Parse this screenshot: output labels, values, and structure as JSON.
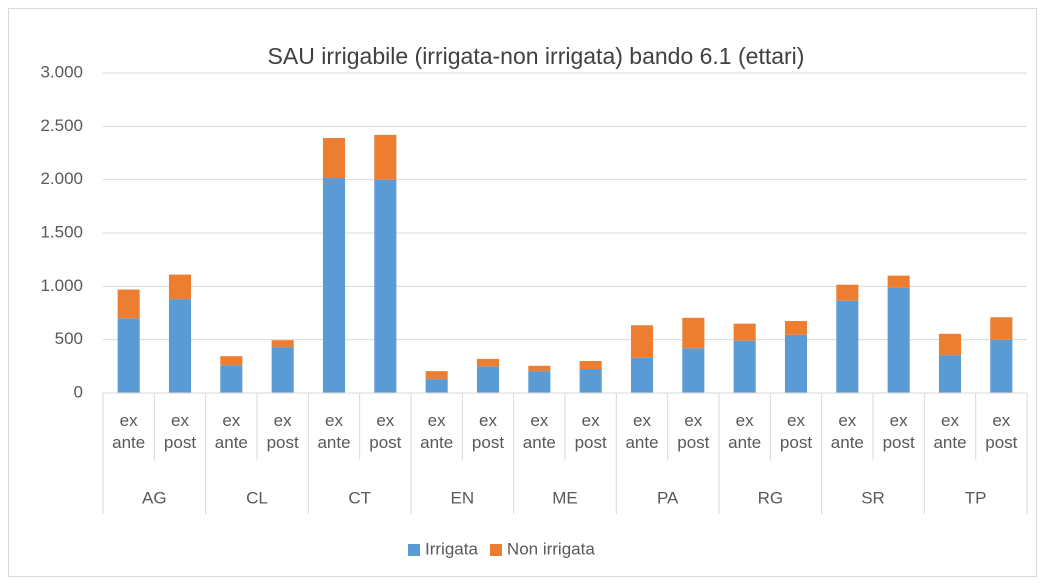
{
  "chart_data": {
    "type": "stacked_bar",
    "title": "SAU irrigabile (irrigata-non irrigata) bando 6.1 (ettari)",
    "groups": [
      "AG",
      "CL",
      "CT",
      "EN",
      "ME",
      "PA",
      "RG",
      "SR",
      "TP"
    ],
    "categories": [
      "ex ante",
      "ex post",
      "ex ante",
      "ex post",
      "ex ante",
      "ex post",
      "ex ante",
      "ex post",
      "ex ante",
      "ex post",
      "ex ante",
      "ex post",
      "ex ante",
      "ex post",
      "ex ante",
      "ex post",
      "ex ante",
      "ex post"
    ],
    "series": [
      {
        "name": "Irrigata",
        "color": "#5b9bd5",
        "values": [
          700,
          880,
          260,
          430,
          2015,
          2000,
          130,
          250,
          205,
          225,
          330,
          420,
          490,
          545,
          865,
          985,
          355,
          500
        ]
      },
      {
        "name": "Non irrigata",
        "color": "#ed7d31",
        "values": [
          270,
          230,
          85,
          65,
          375,
          420,
          75,
          70,
          50,
          75,
          305,
          285,
          160,
          130,
          150,
          115,
          200,
          210
        ]
      }
    ],
    "ylim": [
      0,
      3000
    ],
    "yticks": [
      0,
      500,
      {
        "value": 1000,
        "label": "1.000"
      },
      {
        "value": 1500,
        "label": "1.500"
      },
      {
        "value": 2000,
        "label": "2.000"
      },
      {
        "value": 2500,
        "label": "2.500"
      },
      {
        "value": 3000,
        "label": "3.000"
      }
    ],
    "grid": true,
    "legend": "bottom"
  }
}
